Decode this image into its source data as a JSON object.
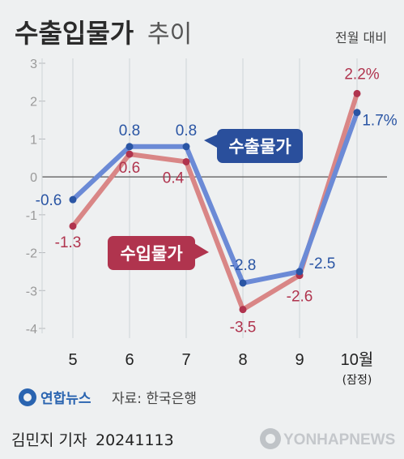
{
  "title_main": "수출입물가",
  "title_sub": "추이",
  "unit_label": "전월 대비",
  "chart_data": {
    "type": "line",
    "categories": [
      "5",
      "6",
      "7",
      "8",
      "9",
      "10월"
    ],
    "category_sublabels": [
      "",
      "",
      "",
      "",
      "",
      "(잠정)"
    ],
    "ylim": [
      -4,
      3
    ],
    "yticks": [
      "3",
      "2",
      "1",
      "0",
      "-1",
      "-2",
      "-3",
      "-4"
    ],
    "grid": true,
    "series": [
      {
        "name": "수출물가",
        "values": [
          -0.6,
          0.8,
          0.8,
          -2.8,
          -2.5,
          1.7
        ],
        "labels": [
          "-0.6",
          "0.8",
          "0.8",
          "-2.8",
          "-2.5",
          "1.7%"
        ],
        "line_color": "#6b8ad6",
        "dot_color": "#2a55a4",
        "label_color": "#2a55a4"
      },
      {
        "name": "수입물가",
        "values": [
          -1.3,
          0.6,
          0.4,
          -3.5,
          -2.6,
          2.2
        ],
        "labels": [
          "-1.3",
          "0.6",
          "0.4",
          "-3.5",
          "-2.6",
          "2.2%"
        ],
        "line_color": "#d98686",
        "dot_color": "#b0344e",
        "label_color": "#b0344e"
      }
    ]
  },
  "source_brand": "연합뉴스",
  "source_text": "자료: 한국은행",
  "footer": {
    "author": "김민지 기자",
    "date": "20241113",
    "agency": "YONHAPNEWS"
  }
}
